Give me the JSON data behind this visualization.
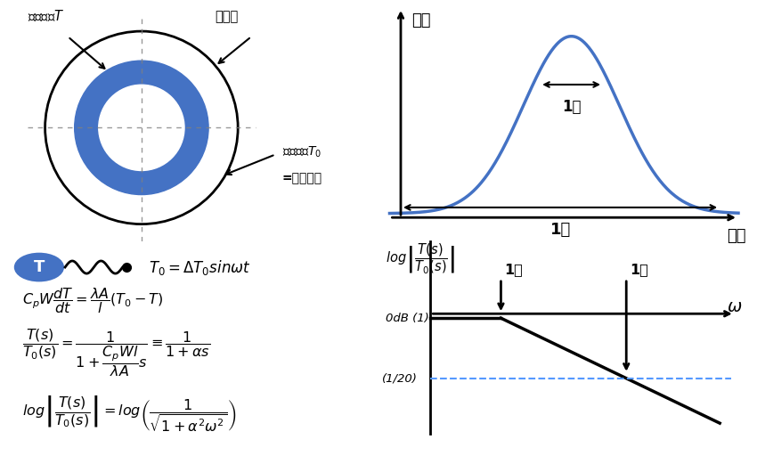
{
  "bg_color": "#ffffff",
  "circle_color": "#4472C4",
  "temp_curve_color": "#4472C4",
  "bode_line_color": "#000000",
  "bode_dashed_color": "#5599FF",
  "label_koukan": "鋼管温度$T$",
  "label_断熱材": "断熱材",
  "label_表面温度_1": "表面温度$T_0$",
  "label_表面温度_2": "=外気温度",
  "kion_label": "気温",
  "jikan_label": "時間",
  "ichi_nichi": "1日",
  "ichi_nen": "1年",
  "omega_label": "$\\omega$",
  "0dB_label": "0dB (1)",
  "1_20_label": "(1/20)"
}
